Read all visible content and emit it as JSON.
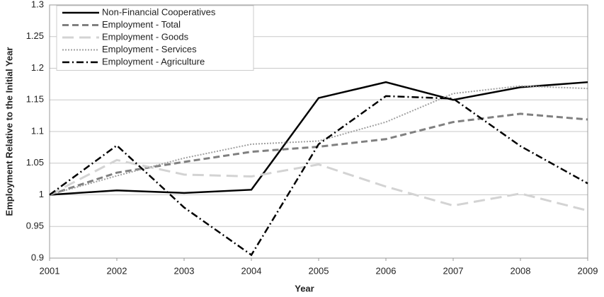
{
  "chart_data": {
    "type": "line",
    "x_label": "Year",
    "y_label": "Employment Relative to the Initial Year",
    "x": [
      2001,
      2002,
      2003,
      2004,
      2005,
      2006,
      2007,
      2008,
      2009
    ],
    "series": [
      {
        "name": "Non-Financial Cooperatives",
        "color": "#000000",
        "style": "solid",
        "values": [
          1.0,
          1.007,
          1.003,
          1.008,
          1.153,
          1.178,
          1.15,
          1.17,
          1.178
        ]
      },
      {
        "name": "Employment - Total",
        "color": "#808080",
        "style": "dashed",
        "values": [
          1.0,
          1.035,
          1.052,
          1.068,
          1.076,
          1.088,
          1.115,
          1.128,
          1.119
        ]
      },
      {
        "name": "Employment - Goods",
        "color": "#d3d3d3",
        "style": "longdash",
        "values": [
          1.0,
          1.055,
          1.032,
          1.029,
          1.048,
          1.013,
          0.983,
          1.002,
          0.975
        ]
      },
      {
        "name": "Employment - Services",
        "color": "#a0a0a0",
        "style": "dotted",
        "values": [
          1.0,
          1.03,
          1.058,
          1.08,
          1.085,
          1.115,
          1.16,
          1.172,
          1.168
        ]
      },
      {
        "name": "Employment - Agriculture",
        "color": "#000000",
        "style": "dashdot",
        "values": [
          1.0,
          1.078,
          0.98,
          0.905,
          1.08,
          1.156,
          1.152,
          1.077,
          1.018
        ]
      }
    ],
    "xlim": [
      2001,
      2009
    ],
    "xticks": [
      2001,
      2002,
      2003,
      2004,
      2005,
      2006,
      2007,
      2008,
      2009
    ],
    "ylim": [
      0.9,
      1.3
    ],
    "yticks": [
      0.9,
      0.95,
      1,
      1.05,
      1.1,
      1.15,
      1.2,
      1.25,
      1.3
    ],
    "grid": true,
    "legend": "upper-left"
  }
}
